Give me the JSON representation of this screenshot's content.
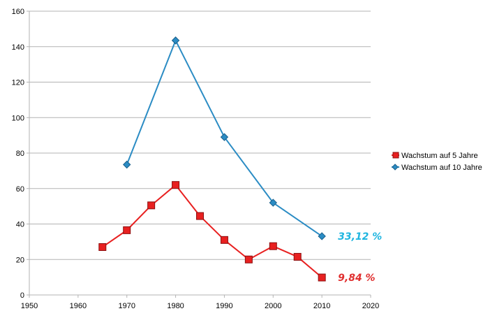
{
  "chart_data": {
    "type": "line",
    "xlim": [
      1950,
      2020
    ],
    "ylim": [
      0,
      160
    ],
    "x_ticks": [
      "1950",
      "1960",
      "1970",
      "1980",
      "1990",
      "2000",
      "2010",
      "2020"
    ],
    "y_ticks": [
      "0",
      "20",
      "40",
      "60",
      "80",
      "100",
      "120",
      "140",
      "160"
    ],
    "grid": "horizontal",
    "legend_position": "right",
    "series": [
      {
        "name": "Wachstum auf 5 Jahre",
        "color": "#e82020",
        "marker": "square",
        "x": [
          1965,
          1970,
          1975,
          1980,
          1985,
          1990,
          1995,
          2000,
          2005,
          2010
        ],
        "y": [
          27,
          36.5,
          50.5,
          62,
          44.5,
          31,
          20,
          27.5,
          21.5,
          9.84
        ]
      },
      {
        "name": "Wachstum auf 10 Jahre",
        "color": "#2b8cc4",
        "marker": "diamond",
        "x": [
          1970,
          1980,
          1990,
          2000,
          2010
        ],
        "y": [
          73.5,
          143.5,
          89,
          52,
          33.12
        ]
      }
    ],
    "annotations": [
      {
        "text": "33,12 %",
        "color": "#1fb5e0",
        "series": 1
      },
      {
        "text": "9,84 %",
        "color": "#e03030",
        "series": 0
      }
    ]
  }
}
